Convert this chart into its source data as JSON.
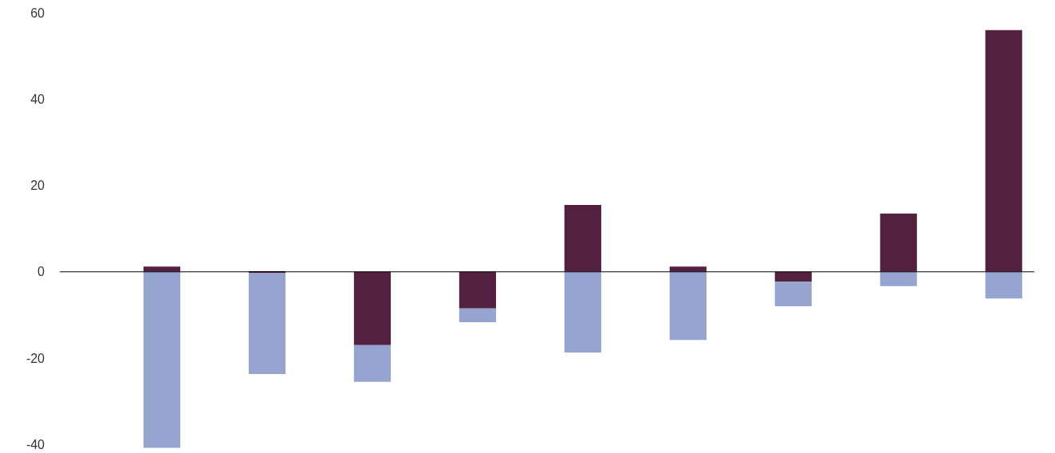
{
  "chart_data": {
    "type": "bar",
    "stacked": true,
    "categories": [
      null,
      null,
      null,
      null,
      null,
      null,
      null,
      null,
      null
    ],
    "series": [
      {
        "color": "#54203f",
        "values": [
          1.2,
          -0.3,
          -17,
          -8.5,
          15.5,
          1.2,
          -2.3,
          13.5,
          56
        ]
      },
      {
        "color": "#95a5cf",
        "values": [
          -40.8,
          -23.4,
          -8.5,
          -3.2,
          -18.7,
          -15.8,
          -5.7,
          -3.3,
          -6.2
        ]
      }
    ],
    "ylim": [
      -42,
      63
    ],
    "yticks": [
      -40,
      -20,
      0,
      20,
      40,
      60
    ],
    "tick_labels": "y",
    "ref_lines": [
      {
        "axis": "y",
        "value": 0,
        "color": "#000000"
      }
    ]
  }
}
